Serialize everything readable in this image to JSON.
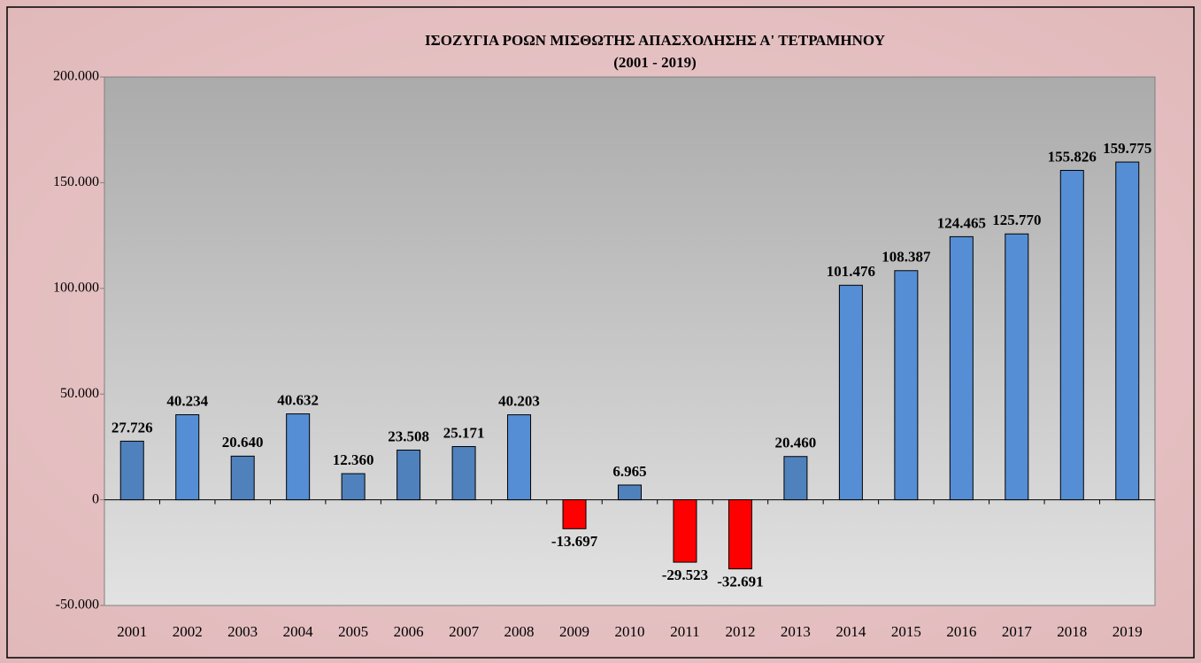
{
  "chart_data": {
    "type": "bar",
    "title": "ΙΣΟΖΥΓΙΑ ΡΟΩΝ ΜΙΣΘΩΤΗΣ ΑΠΑΣΧΟΛΗΣΗΣ Α' ΤΕΤΡΑΜΗΝΟΥ",
    "subtitle": "(2001 - 2019)",
    "categories": [
      "2001",
      "2002",
      "2003",
      "2004",
      "2005",
      "2006",
      "2007",
      "2008",
      "2009",
      "2010",
      "2011",
      "2012",
      "2013",
      "2014",
      "2015",
      "2016",
      "2017",
      "2018",
      "2019"
    ],
    "values": [
      27726,
      40234,
      20640,
      40632,
      12360,
      23508,
      25171,
      40203,
      -13697,
      6965,
      -29523,
      -32691,
      20460,
      101476,
      108387,
      124465,
      125770,
      155826,
      159775
    ],
    "value_labels": [
      "27.726",
      "40.234",
      "20.640",
      "40.632",
      "12.360",
      "23.508",
      "25.171",
      "40.203",
      "-13.697",
      "6.965",
      "-29.523",
      "-32.691",
      "20.460",
      "101.476",
      "108.387",
      "124.465",
      "125.770",
      "155.826",
      "159.775"
    ],
    "colors": [
      "#4f81bd",
      "#558ed5",
      "#4f81bd",
      "#558ed5",
      "#4f81bd",
      "#4f81bd",
      "#4f81bd",
      "#558ed5",
      "#ff0000",
      "#4f81bd",
      "#ff0000",
      "#ff0000",
      "#4f81bd",
      "#558ed5",
      "#558ed5",
      "#558ed5",
      "#558ed5",
      "#558ed5",
      "#558ed5"
    ],
    "ylim": [
      -50000,
      200000
    ],
    "yticks": [
      {
        "value": -50000,
        "label": "-50.000"
      },
      0,
      {
        "value": 50000,
        "label": "50.000"
      },
      {
        "value": 100000,
        "label": "100.000"
      },
      {
        "value": 150000,
        "label": "150.000"
      },
      {
        "value": 200000,
        "label": "200.000"
      }
    ],
    "grid": false
  }
}
